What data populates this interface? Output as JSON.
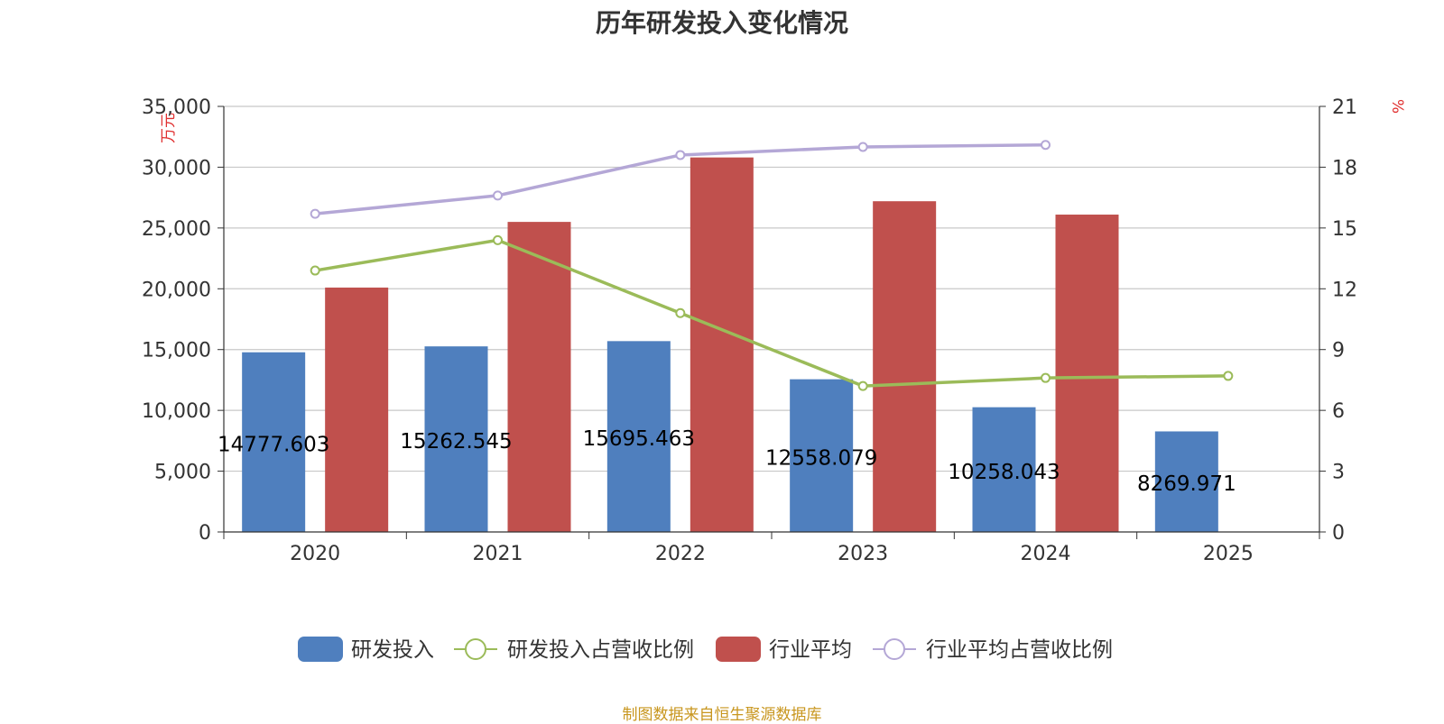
{
  "title": "历年研发投入变化情况",
  "source": "制图数据来自恒生聚源数据库",
  "chart_data": {
    "type": "bar",
    "categories": [
      "2020",
      "2021",
      "2022",
      "2023",
      "2024",
      "2025"
    ],
    "y_left": {
      "label": "万元",
      "ticks": [
        "0",
        "5,000",
        "10,000",
        "15,000",
        "20,000",
        "25,000",
        "30,000",
        "35,000"
      ],
      "range": [
        0,
        35000
      ]
    },
    "y_right": {
      "label": "%",
      "ticks": [
        "0",
        "3",
        "6",
        "9",
        "12",
        "15",
        "18",
        "21"
      ],
      "range": [
        0,
        21
      ]
    },
    "grid": true,
    "legend_position": "bottom",
    "series": [
      {
        "name": "研发投入",
        "type": "bar",
        "axis": "left",
        "color": "#4f7fbe",
        "values": [
          14777.603,
          15262.545,
          15695.463,
          12558.079,
          10258.043,
          8269.971
        ],
        "labels": [
          "14777.603",
          "15262.545",
          "15695.463",
          "12558.079",
          "10258.043",
          "8269.971"
        ]
      },
      {
        "name": "研发投入占营收比例",
        "type": "line",
        "axis": "right",
        "color": "#9bbb59",
        "values": [
          12.9,
          14.4,
          10.8,
          7.2,
          7.6,
          7.7
        ]
      },
      {
        "name": "行业平均",
        "type": "bar",
        "axis": "left",
        "color": "#c0504d",
        "values": [
          20100,
          25500,
          30800,
          27200,
          26100,
          null
        ]
      },
      {
        "name": "行业平均占营收比例",
        "type": "line",
        "axis": "right",
        "color": "#b4a7d6",
        "values": [
          15.7,
          16.6,
          18.6,
          19.0,
          19.1,
          null
        ]
      }
    ]
  }
}
